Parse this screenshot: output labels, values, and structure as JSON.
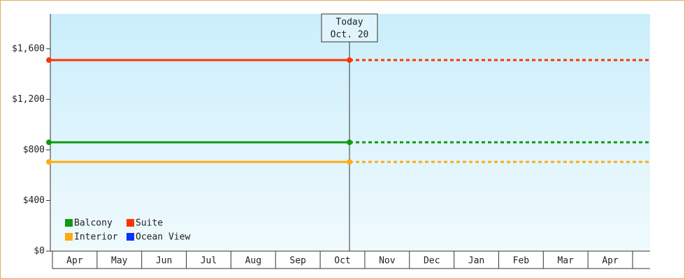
{
  "chart_data": {
    "type": "price-line",
    "annotation": [
      "Today",
      "Oct. 20"
    ],
    "categories": [
      "Apr",
      "May",
      "Jun",
      "Jul",
      "Aug",
      "Sep",
      "Oct",
      "Nov",
      "Dec",
      "Jan",
      "Feb",
      "Mar",
      "Apr"
    ],
    "series": [
      {
        "name": "Balcony",
        "color": "#119911",
        "value": 860
      },
      {
        "name": "Suite",
        "color": "#ff3300",
        "value": 1510
      },
      {
        "name": "Interior",
        "color": "#ffaa11",
        "value": 705
      },
      {
        "name": "Ocean View",
        "color": "#0033ff",
        "value": null
      }
    ],
    "ylim": [
      0,
      1875
    ],
    "yticks": [
      {
        "value": 0,
        "label": "$0"
      },
      {
        "value": 400,
        "label": "$400"
      },
      {
        "value": 800,
        "label": "$800"
      },
      {
        "value": 1200,
        "label": "$1,200"
      },
      {
        "value": 1600,
        "label": "$1,600"
      }
    ]
  }
}
